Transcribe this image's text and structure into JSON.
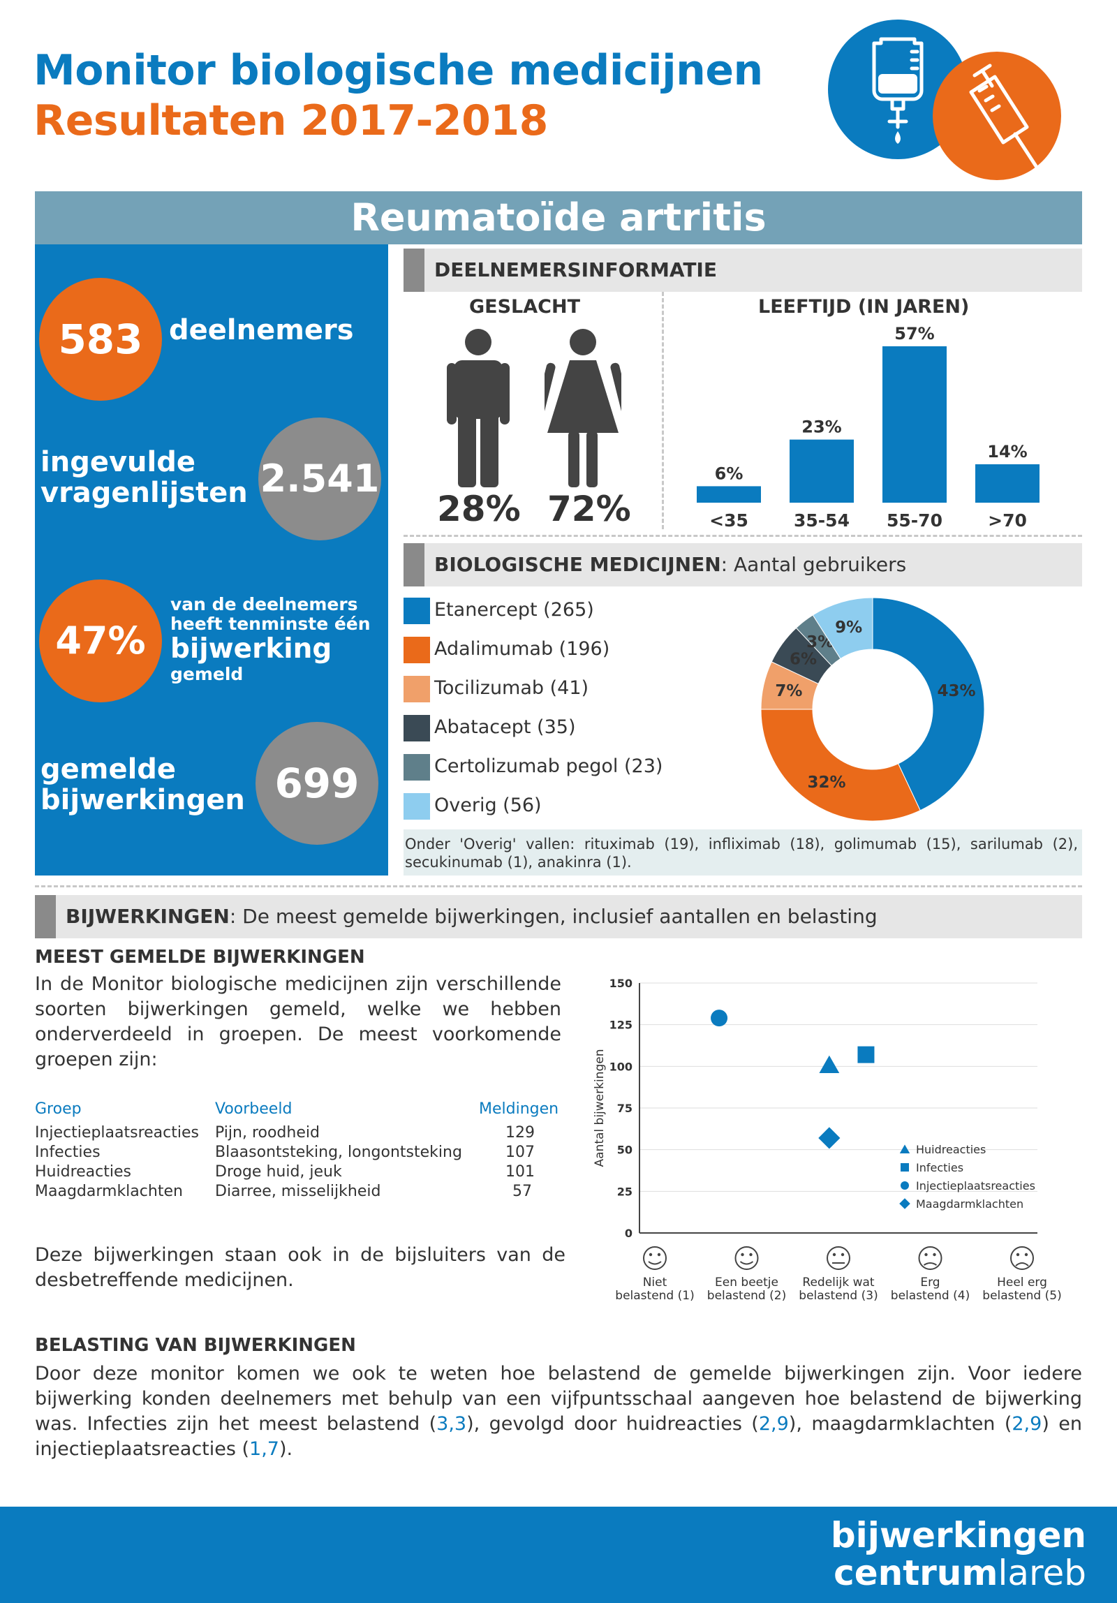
{
  "header": {
    "title": "Monitor biologische medicijnen",
    "subtitle": "Resultaten 2017-2018",
    "icon_left": "iv-bag-icon",
    "icon_right": "syringe-icon"
  },
  "banner": {
    "title": "Reumatoïde artritis"
  },
  "stats": [
    {
      "value": "583",
      "label": "deelnemers"
    },
    {
      "value": "2.541",
      "label_line1": "ingevulde",
      "label_line2": "vragenlijsten"
    },
    {
      "value": "47%",
      "label_line1": "van de deelnemers",
      "label_line2": "heeft tenminste één",
      "label_line3": "bijwerking",
      "label_line4": "gemeld"
    },
    {
      "value": "699",
      "label_line1": "gemelde",
      "label_line2": "bijwerkingen"
    }
  ],
  "participants": {
    "header": "DEELNEMERSINFORMATIE",
    "gender_title": "GESLACHT",
    "male_pct": "28%",
    "female_pct": "72%",
    "age_title": "LEEFTIJD (IN JAREN)"
  },
  "medicines": {
    "header_bold": "BIOLOGISCHE MEDICIJNEN",
    "header_rest": ": Aantal gebruikers",
    "legend": [
      {
        "label": "Etanercept (265)",
        "color": "#0a7bbf"
      },
      {
        "label": "Adalimumab (196)",
        "color": "#ea6a1a"
      },
      {
        "label": "Tocilizumab (41)",
        "color": "#f0a06a"
      },
      {
        "label": "Abatacept (35)",
        "color": "#3a4a55"
      },
      {
        "label": "Certolizumab pegol (23)",
        "color": "#5f7f8a"
      },
      {
        "label": "Overig (56)",
        "color": "#8ecdef"
      }
    ],
    "note": "Onder 'Overig' vallen: rituximab (19), infliximab (18), golimumab (15), sarilumab (2), secukinumab (1), anakinra (1)."
  },
  "side_effects": {
    "header_bold": "BIJWERKINGEN",
    "header_rest": ": De meest gemelde bijwerkingen, inclusief aantallen en belasting",
    "most_title": "MEEST GEMELDE BIJWERKINGEN",
    "intro": "In de Monitor biologische medicijnen zijn verschillende soorten bijwerkingen gemeld, welke we hebben onderverdeeld in groepen. De meest voorkomende groepen zijn:",
    "table": {
      "headers": [
        "Groep",
        "Voorbeeld",
        "Meldingen"
      ],
      "rows": [
        [
          "Injectieplaatsreacties",
          "Pijn, roodheid",
          "129"
        ],
        [
          "Infecties",
          "Blaasontsteking, longontsteking",
          "107"
        ],
        [
          "Huidreacties",
          "Droge huid, jeuk",
          "101"
        ],
        [
          "Maagdarmklachten",
          "Diarree, misselijkheid",
          "57"
        ]
      ]
    },
    "outro": "Deze bijwerkingen staan ook in de bijsluiters van de desbetreffende medicijnen.",
    "burden_title": "BELASTING VAN BIJWERKINGEN",
    "burden_p1": "Door deze monitor komen we ook te weten hoe belastend de gemelde bijwerkingen zijn. Voor iedere bijwerking konden deelnemers met behulp van een vijfpuntsschaal aangeven hoe belastend de bijwerking was. Infecties zijn het meest belastend (",
    "burden_v1": "3,3",
    "burden_p2": "), gevolgd door huidreacties (",
    "burden_v2": "2,9",
    "burden_p3": "), maagdarmklachten (",
    "burden_v3": "2,9",
    "burden_p4": ") en injectieplaatsreacties (",
    "burden_v4": "1,7",
    "burden_p5": ")."
  },
  "footer": {
    "line1": "bijwerkingen",
    "line2_bold": "centrum",
    "line2_rest": "lareb"
  },
  "chart_data": [
    {
      "type": "bar",
      "title": "LEEFTIJD (IN JAREN)",
      "categories": [
        "<35",
        "35-54",
        "55-70",
        ">70"
      ],
      "values": [
        6,
        23,
        57,
        14
      ],
      "labels": [
        "6%",
        "23%",
        "57%",
        "14%"
      ],
      "color": "#0a7bbf"
    },
    {
      "type": "pie",
      "title": "",
      "categories": [
        "Etanercept",
        "Adalimumab",
        "Tocilizumab",
        "Abatacept",
        "Certolizumab pegol",
        "Overig"
      ],
      "values": [
        43,
        32,
        7,
        6,
        3,
        9
      ],
      "labels": [
        "43%",
        "32%",
        "7%",
        "6%",
        "3%",
        "9%"
      ],
      "colors": [
        "#0a7bbf",
        "#ea6a1a",
        "#f0a06a",
        "#3a4a55",
        "#5f7f8a",
        "#8ecdef"
      ]
    },
    {
      "type": "scatter",
      "title": "",
      "ylabel": "Aantal bijwerkingen",
      "ylim": [
        0,
        150
      ],
      "yticks": [
        0,
        25,
        50,
        75,
        100,
        125,
        150
      ],
      "xlim": [
        1,
        5
      ],
      "xticks": [
        1,
        2,
        3,
        4,
        5
      ],
      "xtick_labels": [
        [
          "Niet",
          "belastend (1)"
        ],
        [
          "Een beetje",
          "belastend (2)"
        ],
        [
          "Redelijk wat",
          "belastend (3)"
        ],
        [
          "Erg",
          "belastend (4)"
        ],
        [
          "Heel erg",
          "belastend (5)"
        ]
      ],
      "xtick_icons": [
        "smiley-icon",
        "smiley-icon",
        "neutral-face-icon",
        "frown-icon",
        "sad-face-icon"
      ],
      "grid": true,
      "legend_position": "right",
      "series": [
        {
          "name": "Huidreacties",
          "marker": "triangle",
          "x": 2.9,
          "y": 101
        },
        {
          "name": "Infecties",
          "marker": "square",
          "x": 3.3,
          "y": 107
        },
        {
          "name": "Injectieplaatsreacties",
          "marker": "circle",
          "x": 1.7,
          "y": 129
        },
        {
          "name": "Maagdarmklachten",
          "marker": "diamond",
          "x": 2.9,
          "y": 57
        }
      ],
      "color": "#0a7bbf"
    }
  ]
}
